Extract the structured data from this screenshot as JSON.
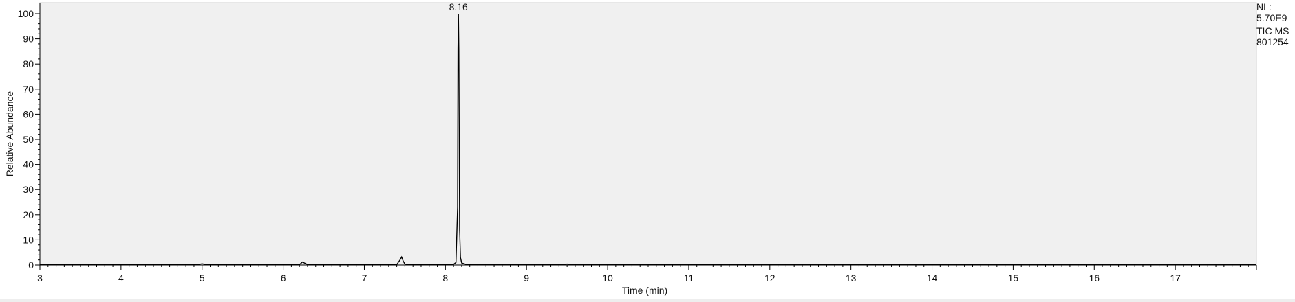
{
  "instrument_info": {
    "nl_label": "NL:",
    "nl_value": "5.70E9",
    "trace_label": "TIC  MS",
    "sample_id": "801254"
  },
  "colors": {
    "plot_background": "#f0f0f0",
    "trace": "#000000",
    "axis": "#000000"
  },
  "chart_data": {
    "type": "line",
    "title": "",
    "xlabel": "Time (min)",
    "ylabel": "Relative Abundance",
    "xlim": [
      3,
      18
    ],
    "ylim": [
      0,
      100
    ],
    "x_ticks": [
      3,
      4,
      5,
      6,
      7,
      8,
      9,
      10,
      11,
      12,
      13,
      14,
      15,
      16,
      17
    ],
    "y_ticks": [
      0,
      10,
      20,
      30,
      40,
      50,
      60,
      70,
      80,
      90,
      100
    ],
    "grid": false,
    "annotations": [
      {
        "x": 8.16,
        "y": 100,
        "text": "8.16"
      }
    ],
    "series": [
      {
        "x": [
          3.0,
          4.95,
          5.0,
          5.05,
          6.2,
          6.24,
          6.26,
          6.3,
          7.4,
          7.44,
          7.46,
          7.48,
          7.5,
          7.55,
          8.1,
          8.13,
          8.15,
          8.155,
          8.16,
          8.165,
          8.175,
          8.185,
          8.2,
          8.25,
          9.45,
          9.5,
          9.55,
          18.0
        ],
        "y": [
          0.2,
          0.2,
          0.5,
          0.2,
          0.2,
          1.2,
          0.8,
          0.2,
          0.2,
          2.0,
          3.2,
          1.5,
          0.4,
          0.2,
          0.3,
          1.0,
          23,
          86,
          100,
          86,
          14,
          3,
          0.8,
          0.3,
          0.2,
          0.4,
          0.2,
          0.2
        ]
      }
    ]
  }
}
